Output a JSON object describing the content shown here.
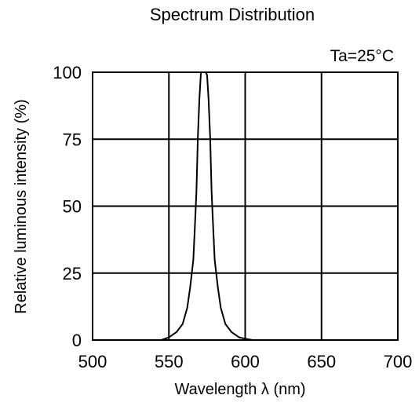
{
  "chart_data": {
    "type": "line",
    "title": "Spectrum Distribution",
    "annotation": "Ta=25°C",
    "xlabel": "Wavelength  λ (nm)",
    "ylabel": "Relative luminous intensity  (%)",
    "xlim": [
      500,
      700
    ],
    "ylim": [
      0,
      100
    ],
    "xticks": [
      "500",
      "550",
      "600",
      "650",
      "700"
    ],
    "yticks": [
      "0",
      "25",
      "50",
      "75",
      "100"
    ],
    "grid": true,
    "series": [
      {
        "color": "#000000",
        "x": [
          500,
          545,
          550,
          555,
          559,
          562,
          564,
          566,
          567,
          568,
          569,
          570,
          571,
          572,
          573,
          574,
          575,
          576,
          577,
          578,
          579,
          580,
          582,
          584,
          587,
          591,
          596,
          600,
          605,
          700
        ],
        "y": [
          0,
          0,
          1,
          3,
          6,
          12,
          20,
          30,
          42,
          55,
          76,
          90,
          100,
          100,
          100,
          100,
          99,
          90,
          76,
          55,
          42,
          30,
          20,
          12,
          6,
          3,
          1,
          0.5,
          0,
          0
        ]
      }
    ]
  }
}
